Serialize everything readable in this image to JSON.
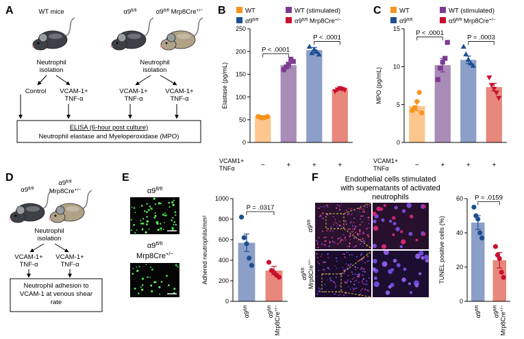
{
  "panel_labels": [
    "A",
    "B",
    "C",
    "D",
    "E",
    "F"
  ],
  "panel_a": {
    "mouse_labels": [
      [
        [
          "WT mice"
        ]
      ],
      [
        [
          "α9",
          "fl/fl"
        ]
      ],
      [
        [
          "α9",
          "fl/fl",
          " Mrp8Cre",
          "+/−"
        ]
      ]
    ],
    "isolation": [
      [
        [
          "Neutrophil"
        ],
        [
          "isolation"
        ]
      ],
      [
        [
          "Neutrophil"
        ],
        [
          "isolation"
        ]
      ]
    ],
    "conditions": [
      [
        [
          "Control"
        ]
      ],
      [
        [
          "VCAM-1+"
        ],
        [
          "TNF-α"
        ]
      ],
      [
        [
          "VCAM-1+"
        ],
        [
          "TNF-α"
        ]
      ],
      [
        [
          "VCAM-1+"
        ],
        [
          "TNF-α"
        ]
      ]
    ],
    "box_title": "ELISA (6-hour post culture)",
    "box_text": "Neutrophil elastase and Myeloperoxidase (MPO)"
  },
  "panel_d": {
    "mouse_labels": [
      [
        [
          "α9",
          "fl/fl"
        ]
      ],
      [
        [
          "α9",
          "fl/fl"
        ],
        [
          "Mrp8Cre",
          "+/−"
        ]
      ]
    ],
    "isolation": [
      [
        "Neutrophil"
      ],
      [
        "isolation"
      ]
    ],
    "conditions": [
      [
        [
          "VCAM-1+"
        ],
        [
          "TNF-α"
        ]
      ],
      [
        [
          "VCAM-1+"
        ],
        [
          "TNF-α"
        ]
      ]
    ],
    "box_text": [
      [
        "Neutrophil adhesion to"
      ],
      [
        "VCAM-1 at venous shear"
      ],
      [
        "rate"
      ]
    ]
  },
  "panel_e": {
    "image_labels": [
      [
        [
          "α9",
          "fl/fl"
        ]
      ],
      [
        [
          "α9",
          "fl/fl"
        ],
        [
          "Mrp8Cre",
          "+/−"
        ]
      ]
    ]
  },
  "panel_f": {
    "title": [
      [
        "Endothelial cells stimulated"
      ],
      [
        "with supernatants of activated"
      ],
      [
        "neutrophils"
      ]
    ],
    "image_labels": [
      [
        [
          "α9",
          "fl/fl"
        ]
      ],
      [
        [
          "α9",
          "fl/fl"
        ],
        [
          "Mrp8Cre",
          "+/−"
        ]
      ]
    ]
  },
  "chart_data": [
    {
      "type": "bar",
      "ylabel": "Elastase (pg/mL)",
      "series_names": [
        [
          [
            "WT"
          ]
        ],
        [
          [
            "WT (stimulated)"
          ]
        ],
        [
          [
            "α9",
            "fl/fl"
          ]
        ],
        [
          [
            "α9",
            "fl/fl",
            " Mrp8Cre",
            "+/−"
          ]
        ]
      ],
      "x_row_label": [
        [
          "VCAM1+"
        ],
        [
          "TNFα"
        ]
      ],
      "categories": [
        "−",
        "+",
        "+",
        "+"
      ],
      "values": [
        57,
        170,
        203,
        117
      ],
      "errors": [
        2,
        6,
        6,
        2
      ],
      "points": [
        [
          57,
          55,
          54,
          55,
          57
        ],
        [
          160,
          166,
          172,
          183,
          178
        ],
        [
          210,
          196,
          204,
          199,
          193
        ],
        [
          113,
          117,
          120,
          118,
          116
        ]
      ],
      "bar_colors": [
        "#fdc68f",
        "#a98cb8",
        "#8c9fc9",
        "#e8877b"
      ],
      "point_colors": [
        "#f7941d",
        "#7d3c8f",
        "#1d4f91",
        "#c8102e"
      ],
      "markers": [
        "circle",
        "square",
        "triangle",
        "triangle-down"
      ],
      "comparisons": [
        "P < .0001",
        "P < .0001"
      ],
      "ylim": [
        0,
        250
      ],
      "yticks": [
        0,
        50,
        100,
        150,
        200,
        250
      ]
    },
    {
      "type": "bar",
      "ylabel": "MPO (pg/mL)",
      "series_names": [
        [
          [
            "WT"
          ]
        ],
        [
          [
            "WT (stimulated)"
          ]
        ],
        [
          [
            "α9",
            "fl/fl"
          ]
        ],
        [
          [
            "α9",
            "fl/fl",
            " Mrp8Cre",
            "+/−"
          ]
        ]
      ],
      "x_row_label": [
        [
          "VCAM1+"
        ],
        [
          "TNFα"
        ]
      ],
      "categories": [
        "−",
        "+",
        "+",
        "+"
      ],
      "values": [
        4.8,
        10.2,
        10.9,
        7.3
      ],
      "errors": [
        0.6,
        0.9,
        0.5,
        0.5
      ],
      "points": [
        [
          4.2,
          4.6,
          5.4,
          6.6,
          3.9
        ],
        [
          8.3,
          9.8,
          10.6,
          11.1,
          13.2
        ],
        [
          12.6,
          11.6,
          10.9,
          10.4,
          10.1
        ],
        [
          8.6,
          7.6,
          7.1,
          6.6,
          5.9
        ]
      ],
      "bar_colors": [
        "#fdc68f",
        "#a98cb8",
        "#8c9fc9",
        "#e8877b"
      ],
      "point_colors": [
        "#f7941d",
        "#7d3c8f",
        "#1d4f91",
        "#c8102e"
      ],
      "markers": [
        "circle",
        "square",
        "triangle",
        "triangle-down"
      ],
      "comparisons": [
        "P < .0001",
        "P = .0003"
      ],
      "ylim": [
        0,
        15
      ],
      "yticks": [
        0,
        5,
        10,
        15
      ]
    },
    {
      "type": "bar",
      "ylabel": "Adhered neutrophils/mm²",
      "categories": [
        [
          [
            "α9",
            "fl/fl"
          ]
        ],
        [
          [
            "α9",
            "fl/fl"
          ],
          [
            "Mrp8Cre",
            "+/−"
          ]
        ]
      ],
      "values": [
        570,
        300
      ],
      "errors": [
        85,
        40
      ],
      "points": [
        [
          820,
          620,
          560,
          420,
          350
        ],
        [
          380,
          300,
          280,
          255,
          235
        ]
      ],
      "bar_colors": [
        "#8c9fc9",
        "#e8877b"
      ],
      "point_colors": [
        "#1d4f91",
        "#c8102e"
      ],
      "comparisons": [
        "P = .0317"
      ],
      "ylim": [
        0,
        1000
      ],
      "yticks": [
        0,
        200,
        400,
        600,
        800,
        1000
      ]
    },
    {
      "type": "bar",
      "ylabel": "TUNEL positive cells (%)",
      "categories": [
        [
          [
            "α9",
            "fl/fl"
          ]
        ],
        [
          [
            "α9",
            "fl/fl"
          ],
          [
            "Mrp8Cre",
            "+/−"
          ]
        ]
      ],
      "values": [
        46,
        24
      ],
      "errors": [
        4,
        4.5
      ],
      "points": [
        [
          55,
          50,
          48,
          40,
          37
        ],
        [
          32,
          27,
          25,
          17,
          14
        ]
      ],
      "bar_colors": [
        "#8c9fc9",
        "#e8877b"
      ],
      "point_colors": [
        "#1d4f91",
        "#c8102e"
      ],
      "comparisons": [
        "P = .0159"
      ],
      "ylim": [
        0,
        60
      ],
      "yticks": [
        0,
        20,
        40,
        60
      ]
    }
  ]
}
